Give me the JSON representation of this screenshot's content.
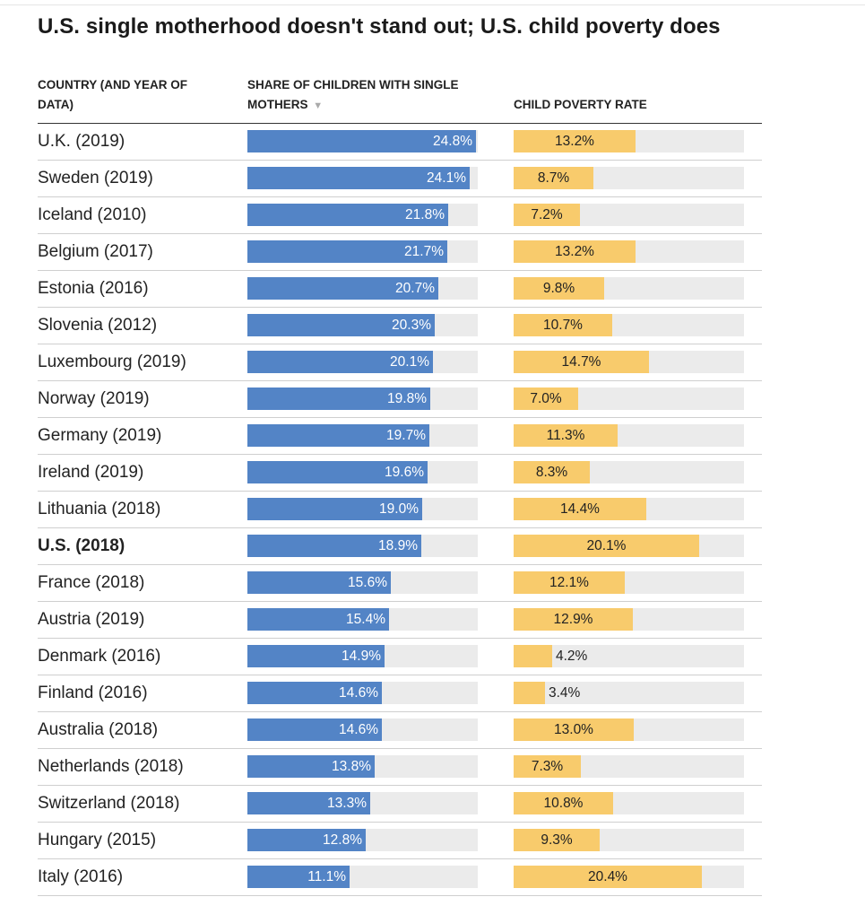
{
  "title": "U.S. single motherhood doesn't stand out; U.S. child poverty does",
  "headers": {
    "country": "COUNTRY (AND YEAR OF DATA)",
    "share": "SHARE OF CHILDREN WITH SINGLE MOTHERS",
    "sort_icon": "▼",
    "poverty": "CHILD POVERTY RATE"
  },
  "colors": {
    "share_bar": "#5384c6",
    "poverty_bar": "#f8cb6c",
    "track": "#ebebeb"
  },
  "chart_data": {
    "type": "table",
    "title": "U.S. single motherhood doesn't stand out; U.S. child poverty does",
    "columns": [
      "COUNTRY (AND YEAR OF DATA)",
      "SHARE OF CHILDREN WITH SINGLE MOTHERS",
      "CHILD POVERTY RATE"
    ],
    "sorted_by": "SHARE OF CHILDREN WITH SINGLE MOTHERS",
    "share_range": [
      0,
      25
    ],
    "poverty_range": [
      0,
      25
    ],
    "rows": [
      {
        "country": "U.K. (2019)",
        "share": 24.8,
        "share_label": "24.8%",
        "poverty": 13.2,
        "poverty_label": "13.2%",
        "highlight": false
      },
      {
        "country": "Sweden (2019)",
        "share": 24.1,
        "share_label": "24.1%",
        "poverty": 8.7,
        "poverty_label": "8.7%",
        "highlight": false
      },
      {
        "country": "Iceland (2010)",
        "share": 21.8,
        "share_label": "21.8%",
        "poverty": 7.2,
        "poverty_label": "7.2%",
        "highlight": false
      },
      {
        "country": "Belgium (2017)",
        "share": 21.7,
        "share_label": "21.7%",
        "poverty": 13.2,
        "poverty_label": "13.2%",
        "highlight": false
      },
      {
        "country": "Estonia (2016)",
        "share": 20.7,
        "share_label": "20.7%",
        "poverty": 9.8,
        "poverty_label": "9.8%",
        "highlight": false
      },
      {
        "country": "Slovenia (2012)",
        "share": 20.3,
        "share_label": "20.3%",
        "poverty": 10.7,
        "poverty_label": "10.7%",
        "highlight": false
      },
      {
        "country": "Luxembourg (2019)",
        "share": 20.1,
        "share_label": "20.1%",
        "poverty": 14.7,
        "poverty_label": "14.7%",
        "highlight": false
      },
      {
        "country": "Norway (2019)",
        "share": 19.8,
        "share_label": "19.8%",
        "poverty": 7.0,
        "poverty_label": "7.0%",
        "highlight": false
      },
      {
        "country": "Germany (2019)",
        "share": 19.7,
        "share_label": "19.7%",
        "poverty": 11.3,
        "poverty_label": "11.3%",
        "highlight": false
      },
      {
        "country": "Ireland (2019)",
        "share": 19.6,
        "share_label": "19.6%",
        "poverty": 8.3,
        "poverty_label": "8.3%",
        "highlight": false
      },
      {
        "country": "Lithuania (2018)",
        "share": 19.0,
        "share_label": "19.0%",
        "poverty": 14.4,
        "poverty_label": "14.4%",
        "highlight": false
      },
      {
        "country": "U.S. (2018)",
        "share": 18.9,
        "share_label": "18.9%",
        "poverty": 20.1,
        "poverty_label": "20.1%",
        "highlight": true
      },
      {
        "country": "France (2018)",
        "share": 15.6,
        "share_label": "15.6%",
        "poverty": 12.1,
        "poverty_label": "12.1%",
        "highlight": false
      },
      {
        "country": "Austria (2019)",
        "share": 15.4,
        "share_label": "15.4%",
        "poverty": 12.9,
        "poverty_label": "12.9%",
        "highlight": false
      },
      {
        "country": "Denmark (2016)",
        "share": 14.9,
        "share_label": "14.9%",
        "poverty": 4.2,
        "poverty_label": "4.2%",
        "highlight": false
      },
      {
        "country": "Finland (2016)",
        "share": 14.6,
        "share_label": "14.6%",
        "poverty": 3.4,
        "poverty_label": "3.4%",
        "highlight": false
      },
      {
        "country": "Australia (2018)",
        "share": 14.6,
        "share_label": "14.6%",
        "poverty": 13.0,
        "poverty_label": "13.0%",
        "highlight": false
      },
      {
        "country": "Netherlands (2018)",
        "share": 13.8,
        "share_label": "13.8%",
        "poverty": 7.3,
        "poverty_label": "7.3%",
        "highlight": false
      },
      {
        "country": "Switzerland (2018)",
        "share": 13.3,
        "share_label": "13.3%",
        "poverty": 10.8,
        "poverty_label": "10.8%",
        "highlight": false
      },
      {
        "country": "Hungary (2015)",
        "share": 12.8,
        "share_label": "12.8%",
        "poverty": 9.3,
        "poverty_label": "9.3%",
        "highlight": false
      },
      {
        "country": "Italy (2016)",
        "share": 11.1,
        "share_label": "11.1%",
        "poverty": 20.4,
        "poverty_label": "20.4%",
        "highlight": false
      }
    ]
  }
}
